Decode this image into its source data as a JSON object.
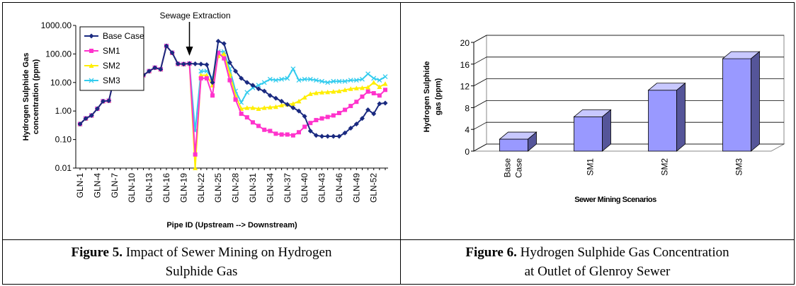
{
  "captions": {
    "fig5": {
      "label": "Figure 5.",
      "line1": " Impact of Sewer Mining on Hydrogen",
      "line2": "Sulphide Gas"
    },
    "fig6": {
      "label": "Figure 6.",
      "line1": " Hydrogen Sulphide Gas Concentration",
      "line2": "at  Outlet of Glenroy Sewer"
    }
  },
  "chart_data": [
    {
      "type": "line",
      "yscale": "log",
      "ylim": [
        0.01,
        1000
      ],
      "yticks": [
        "0.01",
        "0.10",
        "1.00",
        "10.00",
        "100.00",
        "1000.00"
      ],
      "ylabel_line1": "Hydrogen Sulphide Gas",
      "ylabel_line2": "concentration (ppm)",
      "xlabel": "Pipe ID (Upstream --> Downstream)",
      "xtick_labels": [
        "GLN-1",
        "GLN-4",
        "GLN-7",
        "GLN-10",
        "GLN-13",
        "GLN-16",
        "GLN-19",
        "GLN-22",
        "GLN-25",
        "GLN-28",
        "GLN-31",
        "GLN-34",
        "GLN-37",
        "GLN-40",
        "GLN-43",
        "GLN-46",
        "GLN-49",
        "GLN-52"
      ],
      "n_points": 54,
      "annotation": "Sewage Extraction",
      "annotation_at": 19,
      "legend": "top-left",
      "series": [
        {
          "name": "Base Case",
          "color": "#1a2a80",
          "marker": "diamond",
          "values": [
            0.35,
            0.55,
            0.7,
            1.2,
            2.2,
            2.3,
            16,
            11,
            9,
            11,
            14,
            18,
            25,
            33,
            29,
            190,
            110,
            45,
            44,
            46,
            45,
            44,
            42,
            10,
            280,
            230,
            50,
            25,
            14,
            10,
            8,
            6,
            5,
            3.5,
            2.8,
            2.2,
            1.7,
            1.3,
            1.0,
            0.65,
            0.2,
            0.14,
            0.13,
            0.13,
            0.13,
            0.13,
            0.17,
            0.25,
            0.35,
            0.55,
            1.1,
            0.8,
            1.8,
            1.9
          ]
        },
        {
          "name": "SM1",
          "color": "#ff33cc",
          "marker": "square",
          "values": [
            0.35,
            0.55,
            0.7,
            1.2,
            2.2,
            2.3,
            16,
            11,
            9,
            11,
            14,
            18,
            25,
            33,
            29,
            190,
            110,
            45,
            44,
            46,
            0.03,
            14,
            14,
            3.5,
            110,
            70,
            12,
            2.5,
            0.8,
            0.6,
            0.4,
            0.3,
            0.22,
            0.2,
            0.16,
            0.15,
            0.15,
            0.14,
            0.18,
            0.28,
            0.38,
            0.48,
            0.55,
            0.62,
            0.7,
            0.85,
            1.1,
            1.5,
            2.1,
            3.2,
            4.8,
            4.2,
            3.5,
            5.5
          ]
        },
        {
          "name": "SM2",
          "color": "#ffee00",
          "marker": "triangle",
          "values": [
            0.35,
            0.55,
            0.7,
            1.2,
            2.2,
            2.3,
            16,
            11,
            9,
            11,
            14,
            18,
            25,
            33,
            29,
            190,
            110,
            45,
            44,
            46,
            0.01,
            18,
            18,
            8,
            85,
            100,
            20,
            3.5,
            1.2,
            1.3,
            1.3,
            1.2,
            1.3,
            1.35,
            1.4,
            1.6,
            1.7,
            1.8,
            2.2,
            3.0,
            4.0,
            4.3,
            4.5,
            4.6,
            4.8,
            5.0,
            5.5,
            6.0,
            6.3,
            6.5,
            6.8,
            10,
            7,
            9
          ]
        },
        {
          "name": "SM3",
          "color": "#33ccee",
          "marker": "x",
          "values": [
            0.35,
            0.55,
            0.7,
            1.2,
            2.2,
            2.3,
            16,
            11,
            9,
            11,
            14,
            18,
            25,
            33,
            29,
            190,
            110,
            45,
            44,
            46,
            0.2,
            25,
            25,
            14,
            120,
            120,
            30,
            5,
            2.0,
            4.5,
            6.5,
            8,
            10,
            13,
            12,
            13,
            14,
            30,
            12,
            13,
            13,
            12,
            11,
            10,
            11,
            11,
            11,
            12,
            12,
            13,
            20,
            14,
            12,
            16
          ]
        }
      ]
    },
    {
      "type": "bar",
      "ylim": [
        0,
        20
      ],
      "yticks": [
        "0",
        "4",
        "8",
        "12",
        "16",
        "20"
      ],
      "categories": [
        [
          "Base",
          "Case"
        ],
        [
          "SM1"
        ],
        [
          "SM2"
        ],
        [
          "SM3"
        ]
      ],
      "values": [
        2.2,
        6.3,
        11.2,
        17
      ],
      "ylabel_line1": "Hydrogen Sulphide",
      "ylabel_line2": "gas (ppm)",
      "xlabel": "Sewer Mining Scenarios",
      "bar_color": "#9999ff"
    }
  ]
}
